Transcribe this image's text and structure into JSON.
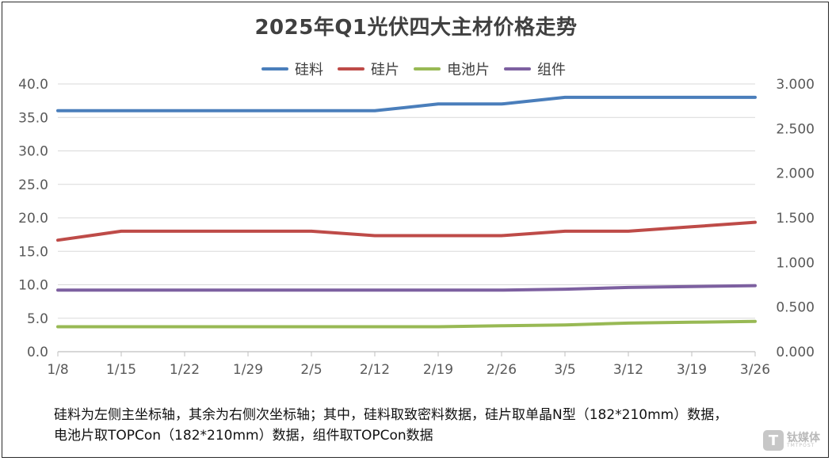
{
  "chart_data": {
    "type": "line",
    "title": "2025年Q1光伏四大主材价格走势",
    "categories": [
      "1/8",
      "1/15",
      "1/22",
      "1/29",
      "2/5",
      "2/12",
      "2/19",
      "2/26",
      "3/5",
      "3/12",
      "3/19",
      "3/26"
    ],
    "left_axis": {
      "ylim": [
        0,
        40
      ],
      "ticks": [
        "0.0",
        "5.0",
        "10.0",
        "15.0",
        "20.0",
        "25.0",
        "30.0",
        "35.0",
        "40.0"
      ]
    },
    "right_axis": {
      "ylim": [
        0,
        3
      ],
      "ticks": [
        "0.000",
        "0.500",
        "1.000",
        "1.500",
        "2.000",
        "2.500",
        "3.000"
      ]
    },
    "grid": true,
    "legend_position": "top",
    "series": [
      {
        "name": "硅料",
        "axis": "left",
        "color": "#4a7ebb",
        "values": [
          36.0,
          36.0,
          36.0,
          36.0,
          36.0,
          36.0,
          37.0,
          37.0,
          38.0,
          38.0,
          38.0,
          38.0
        ]
      },
      {
        "name": "硅片",
        "axis": "right",
        "color": "#be4b48",
        "values": [
          1.25,
          1.35,
          1.35,
          1.35,
          1.35,
          1.3,
          1.3,
          1.3,
          1.35,
          1.35,
          1.4,
          1.45
        ]
      },
      {
        "name": "电池片",
        "axis": "right",
        "color": "#98b954",
        "values": [
          0.28,
          0.28,
          0.28,
          0.28,
          0.28,
          0.28,
          0.28,
          0.29,
          0.3,
          0.32,
          0.33,
          0.34
        ]
      },
      {
        "name": "组件",
        "axis": "right",
        "color": "#7d60a0",
        "values": [
          0.69,
          0.69,
          0.69,
          0.69,
          0.69,
          0.69,
          0.69,
          0.69,
          0.7,
          0.72,
          0.73,
          0.74
        ]
      }
    ]
  },
  "footnote": {
    "line1": "硅料为左侧主坐标轴，其余为右侧次坐标轴；其中，硅料取致密料数据，硅片取单晶N型（182*210mm）数据，",
    "line2": "电池片取TOPCon（182*210mm）数据，组件取TOPCon数据"
  },
  "watermark": {
    "mark": "T",
    "text": "钛媒体",
    "subtext": "TMTPOST"
  }
}
